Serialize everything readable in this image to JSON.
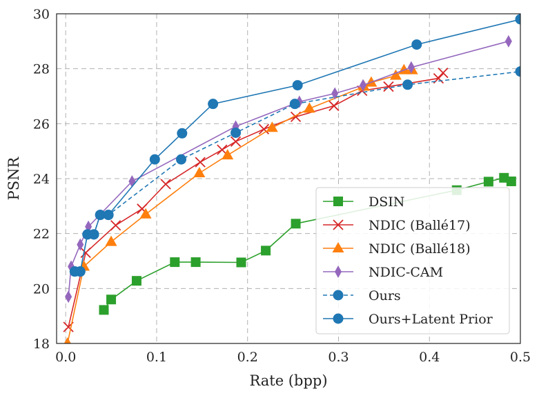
{
  "chart_data": {
    "type": "line",
    "title": "",
    "xlabel": "Rate (bpp)",
    "ylabel": "PSNR",
    "xlim": [
      -0.01,
      0.5
    ],
    "ylim": [
      18,
      30
    ],
    "xticks": [
      0.0,
      0.1,
      0.2,
      0.3,
      0.4,
      0.5
    ],
    "xtick_labels": [
      "0.0",
      "0.1",
      "0.2",
      "0.3",
      "0.4",
      "0.5"
    ],
    "yticks": [
      18,
      20,
      22,
      24,
      26,
      28,
      30
    ],
    "ytick_labels": [
      "18",
      "20",
      "22",
      "24",
      "26",
      "28",
      "30"
    ],
    "grid": true,
    "legend_position": "lower-right",
    "series": [
      {
        "name": "DSIN",
        "color": "#2ca02c",
        "linestyle": "solid",
        "marker": "square",
        "x": [
          0.042,
          0.05,
          0.078,
          0.12,
          0.143,
          0.193,
          0.22,
          0.253,
          0.43,
          0.465,
          0.482,
          0.49
        ],
        "y": [
          19.22,
          19.6,
          20.28,
          20.96,
          20.96,
          20.95,
          21.38,
          22.36,
          23.58,
          23.89,
          24.03,
          23.9
        ]
      },
      {
        "name": "NDIC (Ballé17)",
        "color": "#d62728",
        "linestyle": "solid",
        "marker": "x",
        "x": [
          0.003,
          0.022,
          0.055,
          0.084,
          0.11,
          0.148,
          0.172,
          0.187,
          0.218,
          0.253,
          0.295,
          0.326,
          0.355,
          0.41,
          0.415
        ],
        "y": [
          18.6,
          21.3,
          22.3,
          22.9,
          23.8,
          24.6,
          25.05,
          25.35,
          25.8,
          26.25,
          26.65,
          27.2,
          27.35,
          27.65,
          27.85
        ]
      },
      {
        "name": "NDIC (Ballé18)",
        "color": "#ff7f0e",
        "linestyle": "solid",
        "marker": "triangle",
        "x": [
          0.002,
          0.02,
          0.05,
          0.088,
          0.147,
          0.178,
          0.227,
          0.268,
          0.328,
          0.336,
          0.363,
          0.372,
          0.381
        ],
        "y": [
          18.0,
          20.8,
          21.7,
          22.7,
          24.2,
          24.85,
          25.85,
          26.55,
          27.35,
          27.5,
          27.75,
          27.95,
          27.95
        ]
      },
      {
        "name": "NDIC-CAM",
        "color": "#9467bd",
        "linestyle": "solid",
        "marker": "diamond",
        "x": [
          0.003,
          0.006,
          0.016,
          0.025,
          0.073,
          0.187,
          0.257,
          0.296,
          0.327,
          0.38,
          0.487
        ],
        "y": [
          19.7,
          20.8,
          21.6,
          22.25,
          23.9,
          25.9,
          26.8,
          27.1,
          27.4,
          28.05,
          29.0
        ]
      },
      {
        "name": "Ours",
        "color": "#1f77b4",
        "linestyle": "dashed",
        "marker": "circle",
        "x": [
          0.01,
          0.016,
          0.024,
          0.031,
          0.038,
          0.047,
          0.127,
          0.187,
          0.252,
          0.376,
          0.5
        ],
        "y": [
          20.62,
          20.62,
          21.97,
          21.97,
          22.68,
          22.68,
          24.7,
          25.67,
          26.72,
          27.42,
          27.9
        ]
      },
      {
        "name": "Ours+Latent Prior",
        "color": "#1f77b4",
        "linestyle": "solid",
        "marker": "circle",
        "x": [
          0.01,
          0.016,
          0.024,
          0.031,
          0.038,
          0.047,
          0.098,
          0.128,
          0.162,
          0.255,
          0.386,
          0.5
        ],
        "y": [
          20.62,
          20.62,
          21.97,
          21.97,
          22.68,
          22.68,
          24.7,
          25.65,
          26.72,
          27.4,
          28.88,
          29.8
        ]
      }
    ]
  }
}
